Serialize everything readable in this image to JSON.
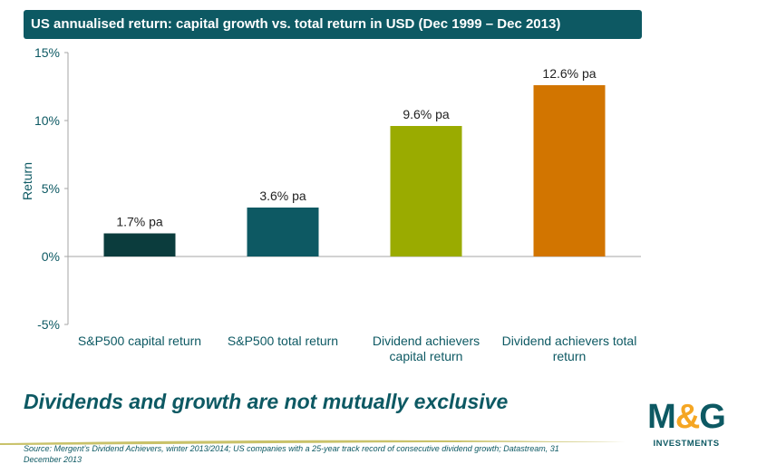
{
  "header": {
    "title": "US annualised return: capital growth vs. total return in USD (Dec 1999 – Dec 2013)"
  },
  "chart_data": {
    "type": "bar",
    "categories": [
      [
        "S&P500 capital return"
      ],
      [
        "S&P500 total return"
      ],
      [
        "Dividend achievers",
        "capital return"
      ],
      [
        "Dividend achievers total",
        "return"
      ]
    ],
    "values": [
      1.7,
      3.6,
      9.6,
      12.6
    ],
    "data_labels": [
      "1.7% pa",
      "3.6% pa",
      "9.6% pa",
      "12.6% pa"
    ],
    "colors": [
      "#0b3c3d",
      "#0d5963",
      "#9aab00",
      "#d27500"
    ],
    "ylabel": "Return",
    "ylim": [
      -5,
      15
    ],
    "yticks": [
      -5,
      0,
      5,
      10,
      15
    ],
    "ytick_labels": [
      "-5%",
      "0%",
      "5%",
      "10%",
      "15%"
    ],
    "grid": false,
    "legend": "none"
  },
  "footer": {
    "tagline": "Dividends and growth are not mutually exclusive",
    "source": "Source: Mergent’s Dividend Achievers, winter 2013/2014; US companies with a 25-year track record of consecutive dividend growth; Datastream, 31 December 2013"
  },
  "logo": {
    "main": "M&G",
    "sub": "INVESTMENTS"
  },
  "colors": {
    "brand": "#0d5963",
    "accent": "#f5a623",
    "swoosh": "#c9c26a"
  }
}
